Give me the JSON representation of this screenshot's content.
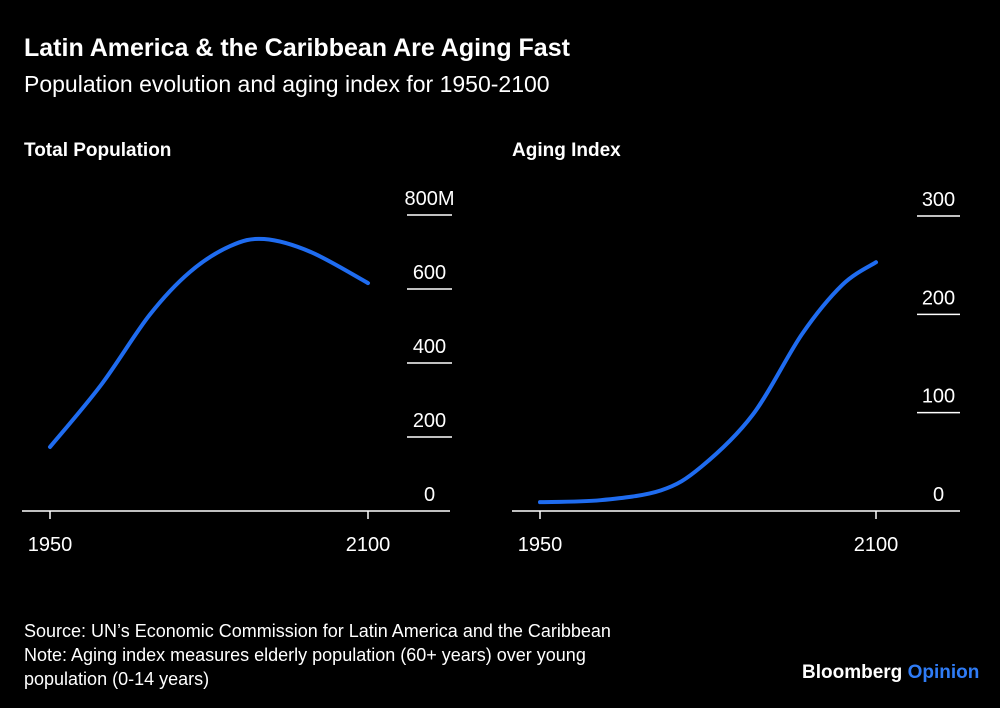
{
  "title": "Latin America & the Caribbean Are Aging Fast",
  "subtitle": "Population evolution and aging index for 1950-2100",
  "footer": {
    "source": "Source: UN’s Economic Commission for Latin America and the Caribbean",
    "note_line1": "Note: Aging index measures elderly population (60+ years) over young",
    "note_line2": "population (0-14 years)"
  },
  "logo": {
    "brand": "Bloomberg",
    "section": "Opinion"
  },
  "colors": {
    "line": "#1f6cf0",
    "background": "#000000",
    "axis": "#ffffff"
  },
  "chart_data": [
    {
      "type": "line",
      "title": "Total Population",
      "x": [
        1950,
        1974,
        1997,
        2016,
        2035,
        2051,
        2073,
        2100
      ],
      "values": [
        173,
        340,
        530,
        646,
        716,
        735,
        700,
        616
      ],
      "xlim": [
        1950,
        2100
      ],
      "ylim": [
        0,
        800
      ],
      "xticks": [
        "1950",
        "2100"
      ],
      "yticks": [
        {
          "v": 0,
          "label": "0"
        },
        {
          "v": 200,
          "label": "200"
        },
        {
          "v": 400,
          "label": "400"
        },
        {
          "v": 600,
          "label": "600"
        },
        {
          "v": 800,
          "label": "800M"
        }
      ]
    },
    {
      "type": "line",
      "title": "Aging Index",
      "x": [
        1950,
        1977,
        2004,
        2022,
        2045,
        2067,
        2085,
        2100
      ],
      "values": [
        9,
        11,
        21,
        45,
        98,
        180,
        230,
        253
      ],
      "xlim": [
        1950,
        2100
      ],
      "ylim": [
        0,
        300
      ],
      "xticks": [
        "1950",
        "2100"
      ],
      "yticks": [
        {
          "v": 0,
          "label": "0"
        },
        {
          "v": 100,
          "label": "100"
        },
        {
          "v": 200,
          "label": "200"
        },
        {
          "v": 300,
          "label": "300"
        }
      ]
    }
  ]
}
